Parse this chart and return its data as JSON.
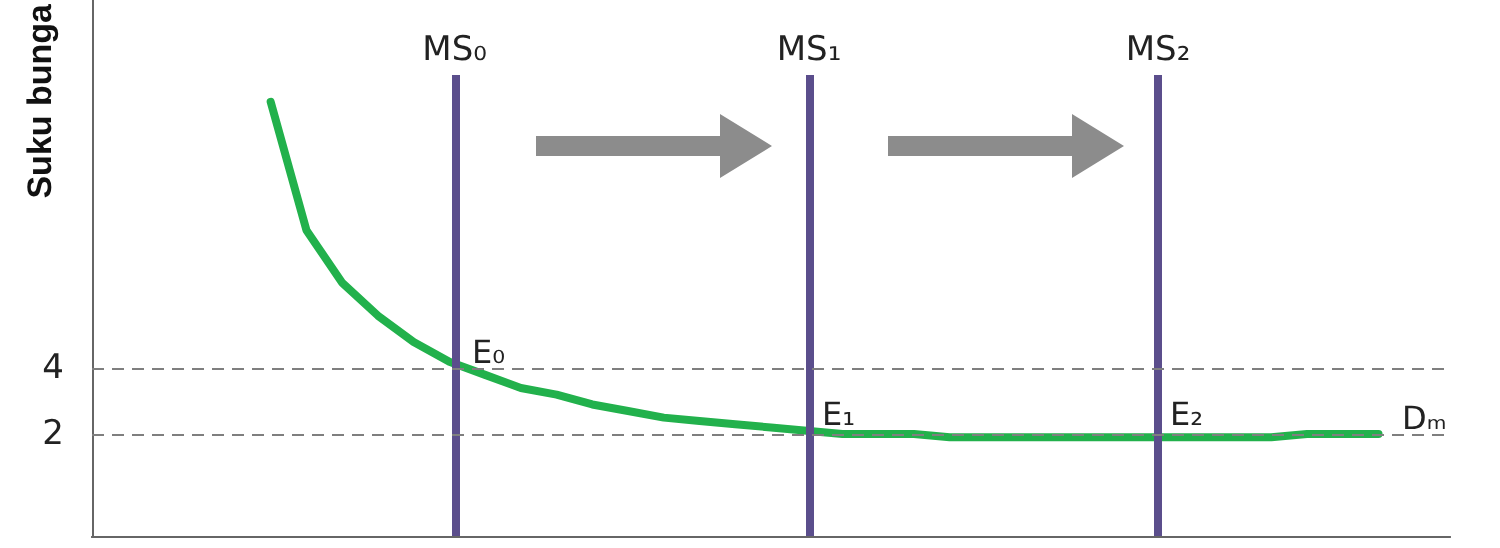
{
  "chart_data": {
    "type": "line",
    "ylabel": "Suku bunga",
    "categories": [
      null,
      null,
      null,
      null,
      null,
      null,
      null,
      null,
      null,
      null,
      null,
      null,
      null,
      null,
      null,
      null,
      null,
      null,
      null,
      null,
      null,
      null,
      null,
      null,
      null,
      null,
      null,
      null,
      null,
      null,
      null,
      null,
      null,
      null,
      null,
      null,
      null,
      null,
      null
    ],
    "ylim": [
      -1.1,
      15.2
    ],
    "yticks": [
      2,
      4
    ],
    "tick_labels": "y",
    "marker": "none",
    "series": [
      {
        "color": "#22b14c",
        "values": [
          null,
          null,
          null,
          null,
          null,
          12.1,
          8.2,
          6.6,
          5.6,
          4.8,
          4.2,
          3.8,
          3.4,
          3.2,
          2.9,
          2.7,
          2.5,
          2.4,
          2.3,
          2.2,
          2.1,
          2.0,
          2.0,
          2.0,
          1.9,
          1.9,
          1.9,
          1.9,
          1.9,
          1.9,
          1.9,
          1.9,
          1.9,
          1.9,
          2.0,
          2.0,
          2.0,
          null,
          null
        ]
      }
    ],
    "ref_lines": [
      {
        "axis": "y",
        "value": 4,
        "color": "#7f7f7f",
        "line_style": "dashed"
      },
      {
        "axis": "y",
        "value": 2,
        "color": "#7f7f7f",
        "line_style": "dashed"
      }
    ],
    "annotations": [
      "MS₀",
      "MS₁",
      "MS₂",
      "E₀",
      "E₁",
      "E₂",
      "Dₘ"
    ]
  }
}
